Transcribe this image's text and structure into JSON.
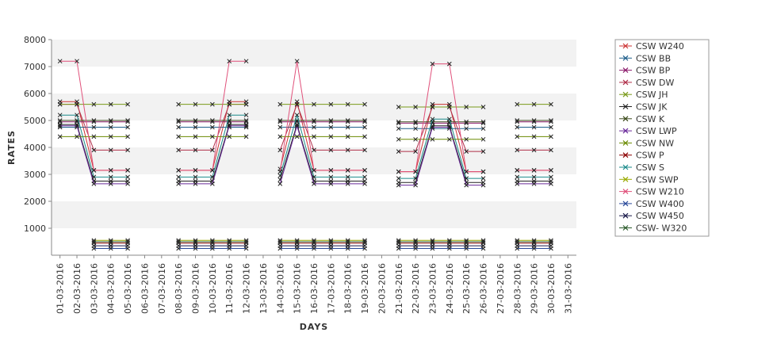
{
  "chart_data": {
    "type": "line",
    "xlabel": "DAYS",
    "ylabel": "RATES",
    "ylim": [
      0,
      8000
    ],
    "yticks": [
      "1000",
      "2000",
      "3000",
      "4000",
      "5000",
      "6000",
      "7000",
      "8000"
    ],
    "categories": [
      "01-03-2016",
      "02-03-2016",
      "03-03-2016",
      "04-03-2016",
      "05-03-2016",
      "06-03-2016",
      "07-03-2016",
      "08-03-2016",
      "09-03-2016",
      "10-03-2016",
      "11-03-2016",
      "12-03-2016",
      "13-03-2016",
      "14-03-2016",
      "15-03-2016",
      "16-03-2016",
      "17-03-2016",
      "18-03-2016",
      "19-03-2016",
      "20-03-2016",
      "21-03-2016",
      "22-03-2016",
      "23-03-2016",
      "24-03-2016",
      "25-03-2016",
      "26-03-2016",
      "27-03-2016",
      "28-03-2016",
      "29-03-2016",
      "30-03-2016",
      "31-03-2016"
    ],
    "grid": "alternating horizontal bands",
    "legend_position": "right",
    "series": [
      {
        "name": "CSW  W240",
        "color": "#cc3333",
        "values": [
          5700,
          5700,
          3150,
          3150,
          3150,
          null,
          null,
          3150,
          3150,
          3150,
          5700,
          5700,
          null,
          3200,
          5700,
          3150,
          3150,
          3150,
          3150,
          null,
          3100,
          3100,
          5600,
          5600,
          3100,
          3100,
          null,
          3150,
          3150,
          3150,
          null
        ]
      },
      {
        "name": "CSW BB",
        "color": "#1f5f8b",
        "values": [
          4750,
          4750,
          4750,
          4750,
          4750,
          null,
          null,
          4750,
          4750,
          4750,
          4750,
          4750,
          null,
          4750,
          4750,
          4750,
          4750,
          4750,
          4750,
          null,
          4700,
          4700,
          4700,
          4700,
          4700,
          4700,
          null,
          4750,
          4750,
          4750,
          null
        ]
      },
      {
        "name": "CSW BP",
        "color": "#8b1a6b",
        "values": [
          4950,
          4950,
          4950,
          4950,
          4950,
          null,
          null,
          4950,
          4950,
          4950,
          4950,
          4950,
          null,
          4950,
          4950,
          4950,
          4950,
          4950,
          4950,
          null,
          4900,
          4900,
          4900,
          4900,
          4900,
          4900,
          null,
          4950,
          4950,
          4950,
          null
        ]
      },
      {
        "name": "CSW DW",
        "color": "#b0304a",
        "values": [
          5600,
          5600,
          3900,
          3900,
          3900,
          null,
          null,
          3900,
          3900,
          3900,
          5600,
          5600,
          null,
          3900,
          5600,
          3900,
          3900,
          3900,
          3900,
          null,
          3850,
          3850,
          5500,
          5500,
          3850,
          3850,
          null,
          3900,
          3900,
          3900,
          null
        ]
      },
      {
        "name": "CSW JH",
        "color": "#7a9a1a",
        "values": [
          5600,
          5600,
          5600,
          5600,
          5600,
          null,
          null,
          5600,
          5600,
          5600,
          5600,
          5600,
          null,
          5600,
          5600,
          5600,
          5600,
          5600,
          5600,
          null,
          5500,
          5500,
          5500,
          5500,
          5500,
          5500,
          null,
          5600,
          5600,
          5600,
          null
        ]
      },
      {
        "name": "CSW JK",
        "color": "#222222",
        "values": [
          4850,
          4850,
          2750,
          2750,
          2750,
          null,
          null,
          2750,
          2750,
          2750,
          4850,
          4850,
          null,
          2800,
          4850,
          2750,
          2750,
          2750,
          2750,
          null,
          2700,
          2700,
          4800,
          4800,
          2700,
          2700,
          null,
          2750,
          2750,
          2750,
          null
        ]
      },
      {
        "name": "CSW K",
        "color": "#3a4a1a",
        "values": [
          5000,
          5000,
          5000,
          5000,
          5000,
          null,
          null,
          5000,
          5000,
          5000,
          5000,
          5000,
          null,
          5000,
          5000,
          5000,
          5000,
          5000,
          5000,
          null,
          4950,
          4950,
          4950,
          4950,
          4950,
          4950,
          null,
          5000,
          5000,
          5000,
          null
        ]
      },
      {
        "name": "CSW LWP",
        "color": "#6a2a9a",
        "values": [
          4800,
          4800,
          2650,
          2650,
          2650,
          null,
          null,
          2650,
          2650,
          2650,
          4800,
          4800,
          null,
          2650,
          4800,
          2650,
          2650,
          2650,
          2650,
          null,
          2600,
          2600,
          4750,
          4750,
          2600,
          2600,
          null,
          2650,
          2650,
          2650,
          null
        ]
      },
      {
        "name": "CSW NW",
        "color": "#6a8a00",
        "values": [
          4400,
          4400,
          4400,
          4400,
          4400,
          null,
          null,
          4400,
          4400,
          4400,
          4400,
          4400,
          null,
          4400,
          4400,
          4400,
          4400,
          4400,
          4400,
          null,
          4300,
          4300,
          4300,
          4300,
          4300,
          4300,
          null,
          4400,
          4400,
          4400,
          null
        ]
      },
      {
        "name": "CSW P",
        "color": "#8b0000",
        "values": [
          null,
          null,
          450,
          450,
          450,
          null,
          null,
          450,
          450,
          450,
          450,
          450,
          null,
          450,
          450,
          450,
          450,
          450,
          450,
          null,
          450,
          450,
          450,
          450,
          450,
          450,
          null,
          450,
          450,
          450,
          null
        ]
      },
      {
        "name": "CSW S",
        "color": "#1a8a8a",
        "values": [
          5200,
          5200,
          2900,
          2900,
          2900,
          null,
          null,
          2900,
          2900,
          2900,
          5200,
          5200,
          null,
          2950,
          5200,
          2900,
          2900,
          2900,
          2900,
          null,
          2850,
          2850,
          5050,
          5050,
          2850,
          2850,
          null,
          2900,
          2900,
          2900,
          null
        ]
      },
      {
        "name": "CSW SWP",
        "color": "#9aaa00",
        "values": [
          null,
          null,
          550,
          550,
          550,
          null,
          null,
          550,
          550,
          550,
          550,
          550,
          null,
          550,
          550,
          550,
          550,
          550,
          550,
          null,
          550,
          550,
          550,
          550,
          550,
          550,
          null,
          550,
          550,
          550,
          null
        ]
      },
      {
        "name": "CSW W210",
        "color": "#e0507a",
        "values": [
          7200,
          7200,
          3150,
          3150,
          3150,
          null,
          null,
          3150,
          3150,
          3150,
          7200,
          7200,
          null,
          3100,
          7200,
          3150,
          3150,
          3150,
          3150,
          null,
          3100,
          3100,
          7100,
          7100,
          3100,
          3100,
          null,
          3150,
          3150,
          3150,
          null
        ]
      },
      {
        "name": "CSW W400",
        "color": "#2a4a9a",
        "values": [
          null,
          null,
          250,
          250,
          250,
          null,
          null,
          250,
          250,
          250,
          250,
          250,
          null,
          250,
          250,
          250,
          250,
          250,
          250,
          null,
          250,
          250,
          250,
          250,
          250,
          250,
          null,
          250,
          250,
          250,
          null
        ]
      },
      {
        "name": "CSW W450",
        "color": "#1a1a4a",
        "values": [
          null,
          null,
          350,
          350,
          350,
          null,
          null,
          350,
          350,
          350,
          350,
          350,
          null,
          350,
          350,
          350,
          350,
          350,
          350,
          null,
          350,
          350,
          350,
          350,
          350,
          350,
          null,
          350,
          350,
          350,
          null
        ]
      },
      {
        "name": "CSW- W320",
        "color": "#2a5a2a",
        "values": [
          null,
          null,
          500,
          500,
          500,
          null,
          null,
          500,
          500,
          500,
          500,
          500,
          null,
          500,
          500,
          500,
          500,
          500,
          500,
          null,
          500,
          500,
          500,
          500,
          500,
          500,
          null,
          500,
          500,
          500,
          null
        ]
      }
    ]
  }
}
